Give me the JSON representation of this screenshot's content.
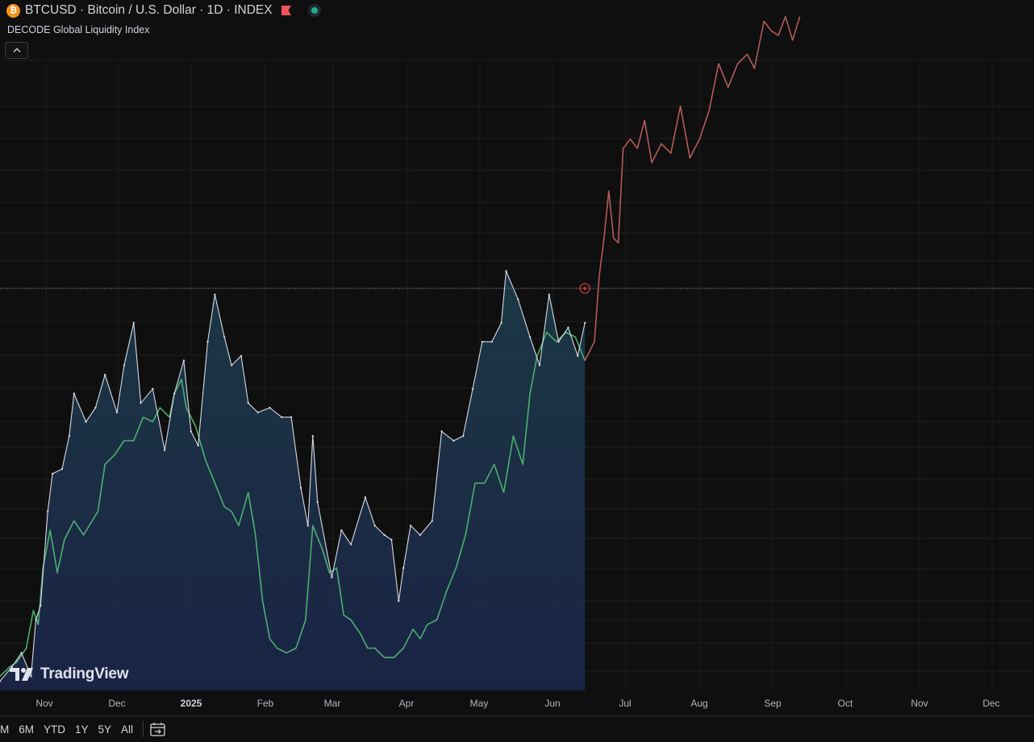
{
  "header": {
    "symbol_title": "BTCUSD · Bitcoin / U.S. Dollar · 1D · INDEX",
    "indicator_name": "DECODE Global Liquidity Index"
  },
  "watermark": {
    "text": "TradingView"
  },
  "range_buttons": [
    "M",
    "6M",
    "YTD",
    "1Y",
    "5Y",
    "All"
  ],
  "colors": {
    "background": "#0f0f0f",
    "btc_line": "#d7dae3",
    "btc_area_top": "#1c3a48",
    "btc_area_bottom": "#1b2448",
    "liquidity_line": "#4caf6e",
    "liquidity_projection": "#b45a5a",
    "grid": "#1c1c1c",
    "crosshair_marker": "#c2313a"
  },
  "icons": [
    "bitcoin-icon",
    "flag-icon",
    "live-status-icon",
    "chevron-up-icon",
    "tradingview-logo-icon",
    "calendar-icon"
  ],
  "chart_data": {
    "type": "line",
    "title": "BTCUSD · Bitcoin / U.S. Dollar · 1D · INDEX",
    "x_tick_labels": [
      "Nov",
      "Dec",
      "2025",
      "Feb",
      "Mar",
      "Apr",
      "May",
      "Jun",
      "Jul",
      "Aug",
      "Sep",
      "Oct",
      "Nov",
      "Dec"
    ],
    "x_range": [
      "2024-10-22",
      "2025-12-20"
    ],
    "y_axis": "hidden",
    "grid": true,
    "legend": "none",
    "series": [
      {
        "name": "BTCUSD",
        "style": "area",
        "x": [
          "2024-10-22",
          "2024-10-27",
          "2024-10-31",
          "2024-11-04",
          "2024-11-06",
          "2024-11-08",
          "2024-11-11",
          "2024-11-13",
          "2024-11-17",
          "2024-11-20",
          "2024-11-22",
          "2024-11-27",
          "2024-12-01",
          "2024-12-05",
          "2024-12-10",
          "2024-12-13",
          "2024-12-17",
          "2024-12-20",
          "2024-12-25",
          "2024-12-30",
          "2025-01-03",
          "2025-01-07",
          "2025-01-10",
          "2025-01-13",
          "2025-01-17",
          "2025-01-20",
          "2025-01-24",
          "2025-01-27",
          "2025-01-31",
          "2025-02-03",
          "2025-02-07",
          "2025-02-12",
          "2025-02-17",
          "2025-02-21",
          "2025-02-25",
          "2025-02-28",
          "2025-03-02",
          "2025-03-04",
          "2025-03-10",
          "2025-03-14",
          "2025-03-18",
          "2025-03-24",
          "2025-03-28",
          "2025-04-01",
          "2025-04-04",
          "2025-04-07",
          "2025-04-09",
          "2025-04-12",
          "2025-04-16",
          "2025-04-21",
          "2025-04-25",
          "2025-04-30",
          "2025-05-04",
          "2025-05-08",
          "2025-05-12",
          "2025-05-16",
          "2025-05-20",
          "2025-05-22",
          "2025-05-27",
          "2025-06-01",
          "2025-06-05",
          "2025-06-09",
          "2025-06-13",
          "2025-06-17",
          "2025-06-21",
          "2025-06-24"
        ],
        "values": [
          68000,
          69500,
          71000,
          68500,
          74500,
          76000,
          86000,
          90000,
          90500,
          94000,
          98500,
          95500,
          97000,
          100500,
          96500,
          101500,
          106000,
          97500,
          99000,
          92500,
          98500,
          102000,
          94500,
          93000,
          104000,
          109000,
          104500,
          101500,
          102500,
          97500,
          96500,
          97000,
          96000,
          96000,
          88500,
          84500,
          94000,
          87000,
          79000,
          84000,
          82500,
          87500,
          84500,
          83500,
          83000,
          76500,
          80000,
          84500,
          83500,
          85000,
          94500,
          93500,
          94000,
          99000,
          104000,
          104000,
          106000,
          111500,
          108500,
          104500,
          101500,
          109000,
          104000,
          105500,
          102500,
          106000
        ]
      },
      {
        "name": "DECODE Global Liquidity Index",
        "style": "line",
        "x": [
          "2024-10-22",
          "2024-10-26",
          "2024-10-29",
          "2024-11-02",
          "2024-11-05",
          "2024-11-07",
          "2024-11-09",
          "2024-11-12",
          "2024-11-15",
          "2024-11-18",
          "2024-11-22",
          "2024-11-26",
          "2024-12-02",
          "2024-12-05",
          "2024-12-09",
          "2024-12-13",
          "2024-12-17",
          "2024-12-21",
          "2024-12-25",
          "2024-12-28",
          "2025-01-01",
          "2025-01-03",
          "2025-01-06",
          "2025-01-08",
          "2025-01-12",
          "2025-01-16",
          "2025-01-20",
          "2025-01-24",
          "2025-01-27",
          "2025-01-30",
          "2025-02-03",
          "2025-02-06",
          "2025-02-09",
          "2025-02-12",
          "2025-02-15",
          "2025-02-19",
          "2025-02-23",
          "2025-02-27",
          "2025-03-02",
          "2025-03-06",
          "2025-03-09",
          "2025-03-12",
          "2025-03-15",
          "2025-03-18",
          "2025-03-22",
          "2025-03-25",
          "2025-03-28",
          "2025-04-01",
          "2025-04-05",
          "2025-04-09",
          "2025-04-13",
          "2025-04-16",
          "2025-04-19",
          "2025-04-23",
          "2025-04-27",
          "2025-05-01",
          "2025-05-05",
          "2025-05-09",
          "2025-05-13",
          "2025-05-17",
          "2025-05-21",
          "2025-05-25",
          "2025-05-29",
          "2025-06-01",
          "2025-06-04",
          "2025-06-08",
          "2025-06-12",
          "2025-06-16",
          "2025-06-20",
          "2025-06-24"
        ],
        "values": [
          68500,
          69500,
          70000,
          71500,
          75500,
          74000,
          80000,
          84000,
          79500,
          83000,
          85000,
          83500,
          86000,
          91000,
          92000,
          93500,
          93500,
          96000,
          95500,
          97000,
          96000,
          98500,
          100000,
          97000,
          95000,
          91500,
          89000,
          86500,
          86000,
          84500,
          88000,
          83500,
          76500,
          72500,
          71500,
          71000,
          71500,
          74500,
          84500,
          82000,
          79500,
          80000,
          75000,
          74500,
          73000,
          71500,
          71500,
          70500,
          70500,
          71500,
          73500,
          72500,
          74000,
          74500,
          77500,
          80000,
          83500,
          89000,
          89000,
          91000,
          88000,
          94000,
          91000,
          98500,
          102500,
          105000,
          104000,
          105000,
          104500,
          102000
        ]
      },
      {
        "name": "DECODE Global Liquidity Index (projection)",
        "style": "line",
        "x": [
          "2025-06-24",
          "2025-06-26",
          "2025-06-28",
          "2025-06-30",
          "2025-07-02",
          "2025-07-04",
          "2025-07-06",
          "2025-07-08",
          "2025-07-10",
          "2025-07-13",
          "2025-07-16",
          "2025-07-19",
          "2025-07-22",
          "2025-07-26",
          "2025-07-30",
          "2025-08-03",
          "2025-08-07",
          "2025-08-11",
          "2025-08-15",
          "2025-08-19",
          "2025-08-23",
          "2025-08-27",
          "2025-08-31",
          "2025-09-03",
          "2025-09-07",
          "2025-09-10",
          "2025-09-13",
          "2025-09-16",
          "2025-09-19",
          "2025-09-22"
        ],
        "values": [
          102000,
          103000,
          104000,
          111000,
          115000,
          120000,
          115000,
          114500,
          124500,
          125500,
          124500,
          127500,
          123000,
          125000,
          124000,
          129000,
          123500,
          125500,
          128500,
          133500,
          131000,
          133500,
          134500,
          133000,
          138000,
          137000,
          136500,
          138500,
          136000,
          138500
        ]
      }
    ]
  }
}
